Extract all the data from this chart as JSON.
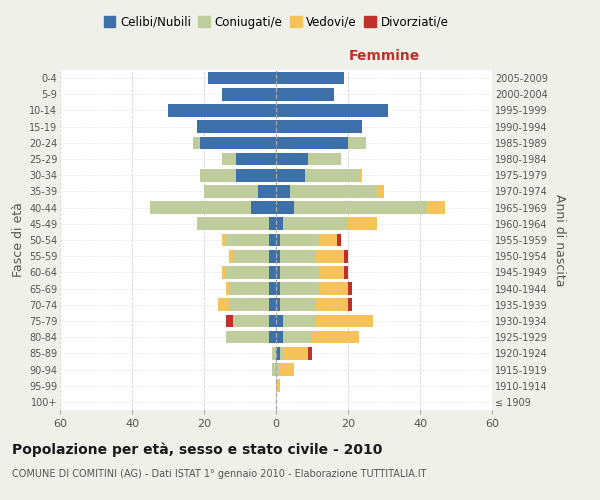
{
  "age_groups": [
    "100+",
    "95-99",
    "90-94",
    "85-89",
    "80-84",
    "75-79",
    "70-74",
    "65-69",
    "60-64",
    "55-59",
    "50-54",
    "45-49",
    "40-44",
    "35-39",
    "30-34",
    "25-29",
    "20-24",
    "15-19",
    "10-14",
    "5-9",
    "0-4"
  ],
  "birth_years": [
    "≤ 1909",
    "1910-1914",
    "1915-1919",
    "1920-1924",
    "1925-1929",
    "1930-1934",
    "1935-1939",
    "1940-1944",
    "1945-1949",
    "1950-1954",
    "1955-1959",
    "1960-1964",
    "1965-1969",
    "1970-1974",
    "1975-1979",
    "1980-1984",
    "1985-1989",
    "1990-1994",
    "1995-1999",
    "2000-2004",
    "2005-2009"
  ],
  "males": {
    "celibi": [
      0,
      0,
      0,
      0,
      2,
      2,
      2,
      2,
      2,
      2,
      2,
      2,
      7,
      5,
      11,
      11,
      21,
      22,
      30,
      15,
      19
    ],
    "coniugati": [
      0,
      0,
      1,
      1,
      12,
      10,
      11,
      11,
      12,
      10,
      12,
      20,
      28,
      15,
      10,
      4,
      2,
      0,
      0,
      0,
      0
    ],
    "vedovi": [
      0,
      0,
      0,
      0,
      0,
      0,
      3,
      1,
      1,
      1,
      1,
      0,
      0,
      0,
      0,
      0,
      0,
      0,
      0,
      0,
      0
    ],
    "divorziati": [
      0,
      0,
      0,
      0,
      0,
      2,
      0,
      0,
      0,
      0,
      0,
      0,
      0,
      0,
      0,
      0,
      0,
      0,
      0,
      0,
      0
    ]
  },
  "females": {
    "nubili": [
      0,
      0,
      0,
      1,
      2,
      2,
      1,
      1,
      1,
      1,
      1,
      2,
      5,
      4,
      8,
      9,
      20,
      24,
      31,
      16,
      19
    ],
    "coniugate": [
      0,
      0,
      1,
      1,
      8,
      9,
      10,
      11,
      11,
      10,
      11,
      18,
      37,
      24,
      15,
      9,
      5,
      0,
      0,
      0,
      0
    ],
    "vedove": [
      0,
      1,
      4,
      7,
      13,
      16,
      9,
      8,
      7,
      8,
      5,
      8,
      5,
      2,
      1,
      0,
      0,
      0,
      0,
      0,
      0
    ],
    "divorziate": [
      0,
      0,
      0,
      1,
      0,
      0,
      1,
      1,
      1,
      1,
      1,
      0,
      0,
      0,
      0,
      0,
      0,
      0,
      0,
      0,
      0
    ]
  },
  "colors": {
    "celibi": "#3d6fa8",
    "coniugati": "#bfcc9b",
    "vedovi": "#f5c35a",
    "divorziati": "#c0302a"
  },
  "xlim": 60,
  "title": "Popolazione per età, sesso e stato civile - 2010",
  "subtitle": "COMUNE DI COMITINI (AG) - Dati ISTAT 1° gennaio 2010 - Elaborazione TUTTITALIA.IT",
  "ylabel_left": "Fasce di età",
  "ylabel_right": "Anni di nascita",
  "xlabel_female": "Femmine",
  "legend_labels": [
    "Celibi/Nubili",
    "Coniugati/e",
    "Vedovi/e",
    "Divorziati/e"
  ],
  "bg_color": "#f0f0eb",
  "plot_bg": "#ffffff",
  "male_label_color": "#333333",
  "female_label_color": "#c0302a"
}
